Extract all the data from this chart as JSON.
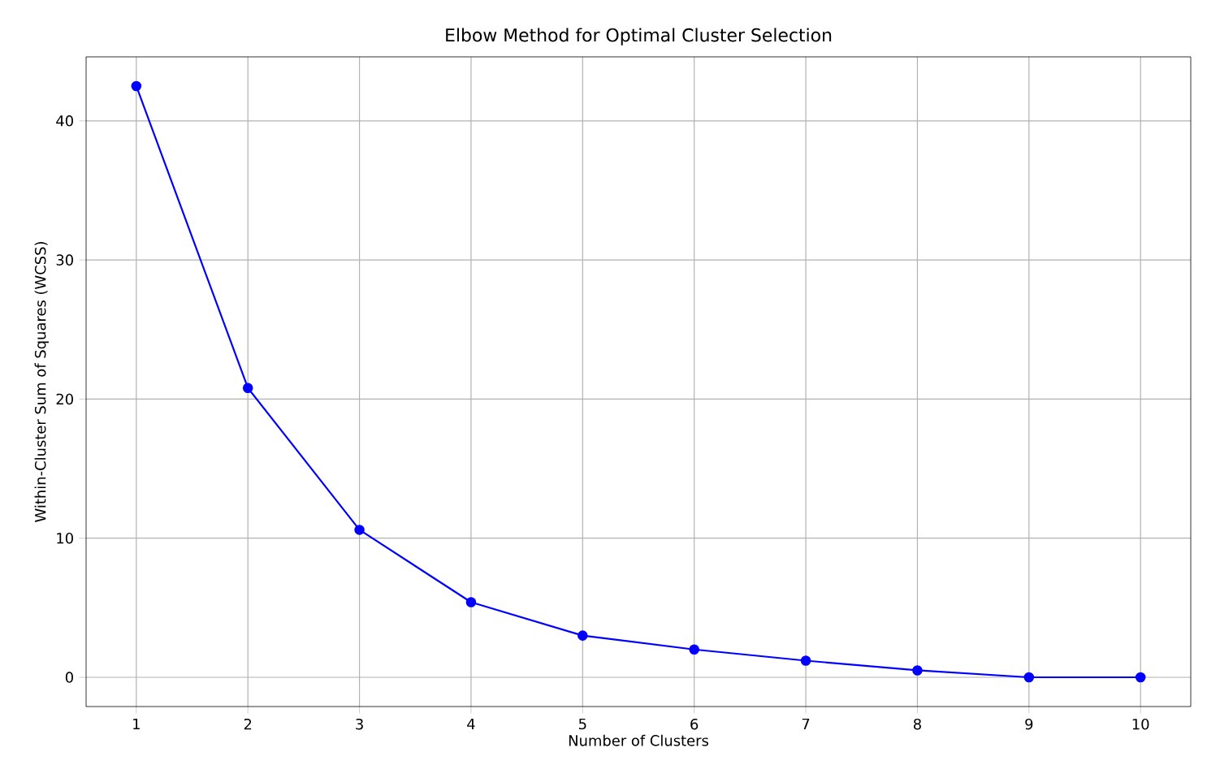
{
  "chart_data": {
    "type": "line",
    "title": "Elbow Method for Optimal Cluster Selection",
    "xlabel": "Number of Clusters",
    "ylabel": "Within-Cluster Sum of Squares (WCSS)",
    "x": [
      1,
      2,
      3,
      4,
      5,
      6,
      7,
      8,
      9,
      10
    ],
    "series": [
      {
        "color": "#0000ff",
        "values": [
          42.5,
          20.8,
          10.6,
          5.4,
          3.0,
          2.0,
          1.2,
          0.5,
          0.0,
          0.0
        ]
      }
    ],
    "xlim": [
      0.55,
      10.45
    ],
    "ylim": [
      -2.1,
      44.6
    ],
    "xticks": [
      1,
      2,
      3,
      4,
      5,
      6,
      7,
      8,
      9,
      10
    ],
    "yticks": [
      0,
      10,
      20,
      30,
      40
    ],
    "grid": true,
    "marker": "circle",
    "line_style": "solid"
  }
}
